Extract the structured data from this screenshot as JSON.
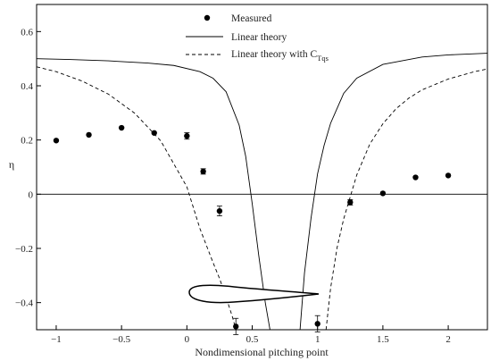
{
  "chart_data": {
    "type": "scatter",
    "title": "",
    "xlabel": "Nondimensional pitching point",
    "ylabel": "η",
    "xlim": [
      -1.15,
      2.3
    ],
    "ylim": [
      -0.5,
      0.7
    ],
    "x_ticks": [
      -1,
      -0.5,
      0,
      0.5,
      1,
      1.5,
      2
    ],
    "x_tick_labels": [
      "−1",
      "−0.5",
      "0",
      "0.5",
      "1",
      "1.5",
      "2"
    ],
    "y_ticks": [
      -0.4,
      -0.2,
      0,
      0.2,
      0.4,
      0.6
    ],
    "y_tick_labels": [
      "−0.4",
      "−0.2",
      "0",
      "0.2",
      "0.4",
      "0.6"
    ],
    "grid": false,
    "zero_line": true,
    "legend": {
      "position": "top-center",
      "entries": [
        {
          "label": "Measured",
          "style": "marker"
        },
        {
          "label": "Linear theory",
          "style": "solid"
        },
        {
          "label_main": "Linear theory with C",
          "label_sub": "Tqs",
          "style": "dashed"
        }
      ]
    },
    "series": [
      {
        "name": "Measured",
        "style": "marker",
        "x": [
          -1.0,
          -0.75,
          -0.5,
          -0.25,
          0.0,
          0.125,
          0.25,
          0.375,
          1.0,
          1.25,
          1.5,
          1.75,
          2.0
        ],
        "y": [
          0.198,
          0.219,
          0.245,
          0.226,
          0.215,
          0.084,
          -0.062,
          -0.488,
          -0.478,
          -0.03,
          0.003,
          0.062,
          0.069
        ],
        "err": [
          0.006,
          0.006,
          0.006,
          0.006,
          0.012,
          0.01,
          0.018,
          0.03,
          0.03,
          0.01,
          0.005,
          0.005,
          0.005
        ]
      },
      {
        "name": "Linear theory",
        "style": "solid",
        "x": [
          -1.15,
          -0.9,
          -0.6,
          -0.3,
          -0.1,
          0.1,
          0.2,
          0.3,
          0.4,
          0.45,
          0.5,
          0.55,
          0.6,
          0.636,
          null,
          0.866,
          0.9,
          0.95,
          1.0,
          1.05,
          1.1,
          1.2,
          1.3,
          1.5,
          1.8,
          2.0,
          2.3
        ],
        "y": [
          0.5,
          0.497,
          0.492,
          0.484,
          0.475,
          0.452,
          0.428,
          0.378,
          0.255,
          0.14,
          -0.035,
          -0.226,
          -0.4,
          -0.5,
          null,
          -0.5,
          -0.291,
          -0.089,
          0.075,
          0.18,
          0.262,
          0.372,
          0.428,
          0.479,
          0.506,
          0.514,
          0.52
        ]
      },
      {
        "name": "Linear theory with C",
        "style": "dashed",
        "x": [
          -1.15,
          -1.0,
          -0.8,
          -0.6,
          -0.4,
          -0.2,
          0.0,
          0.1,
          0.2,
          0.25,
          0.3,
          0.35,
          0.375,
          null,
          1.065,
          1.1,
          1.15,
          1.2,
          1.3,
          1.4,
          1.5,
          1.6,
          1.7,
          1.8,
          2.0,
          2.2,
          2.3
        ],
        "y": [
          0.47,
          0.452,
          0.417,
          0.369,
          0.299,
          0.197,
          0.027,
          -0.127,
          -0.252,
          -0.311,
          -0.38,
          -0.455,
          -0.5,
          null,
          -0.5,
          -0.346,
          -0.196,
          -0.091,
          0.071,
          0.185,
          0.26,
          0.315,
          0.355,
          0.385,
          0.425,
          0.452,
          0.462
        ]
      }
    ]
  }
}
